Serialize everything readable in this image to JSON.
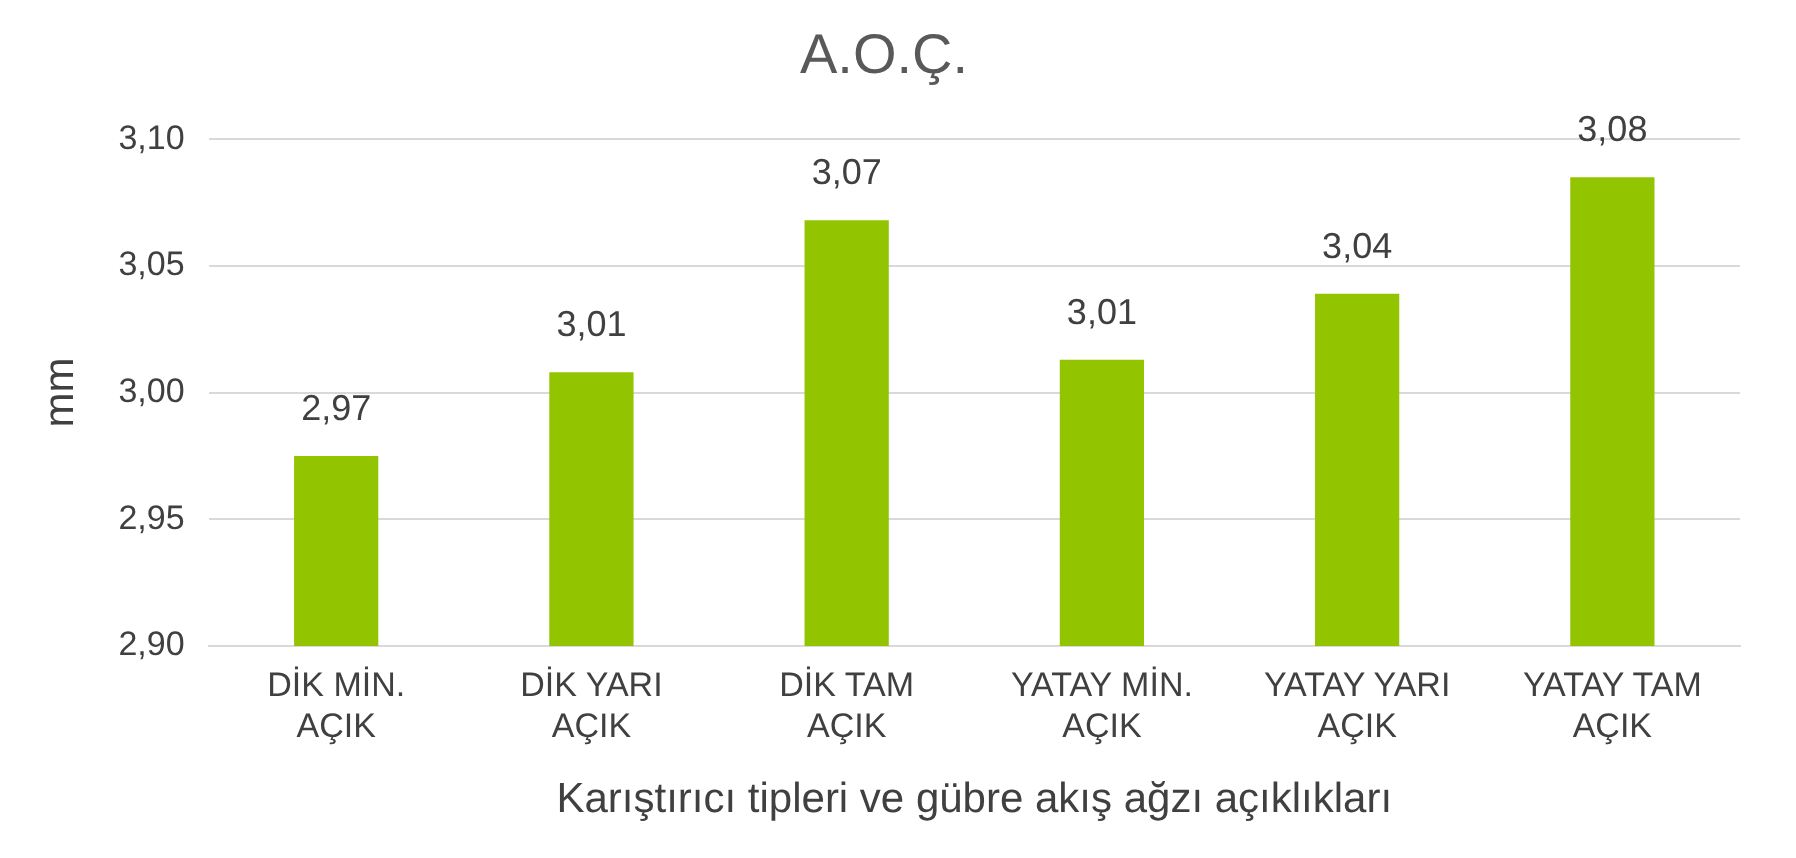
{
  "chart_data": {
    "type": "bar",
    "title": "A.O.Ç.",
    "xlabel": "Karıştırıcı tipleri ve gübre akış ağzı açıklıkları",
    "ylabel": "mm",
    "categories": [
      "DİK MİN. AÇIK",
      "DİK YARI AÇIK",
      "DİK TAM AÇIK",
      "YATAY MİN. AÇIK",
      "YATAY YARI AÇIK",
      "YATAY TAM AÇIK"
    ],
    "values": [
      2.975,
      3.008,
      3.068,
      3.013,
      3.039,
      3.085
    ],
    "value_labels": [
      "2,97",
      "3,01",
      "3,07",
      "3,01",
      "3,04",
      "3,08"
    ],
    "color": "#92c400",
    "ylim": [
      2.9,
      3.1
    ],
    "yticks": [
      {
        "value": 2.9,
        "label": "2,90"
      },
      {
        "value": 2.95,
        "label": "2,95"
      },
      {
        "value": 3.0,
        "label": "3,00"
      },
      {
        "value": 3.05,
        "label": "3,05"
      },
      {
        "value": 3.1,
        "label": "3,10"
      }
    ],
    "grid": "y"
  }
}
